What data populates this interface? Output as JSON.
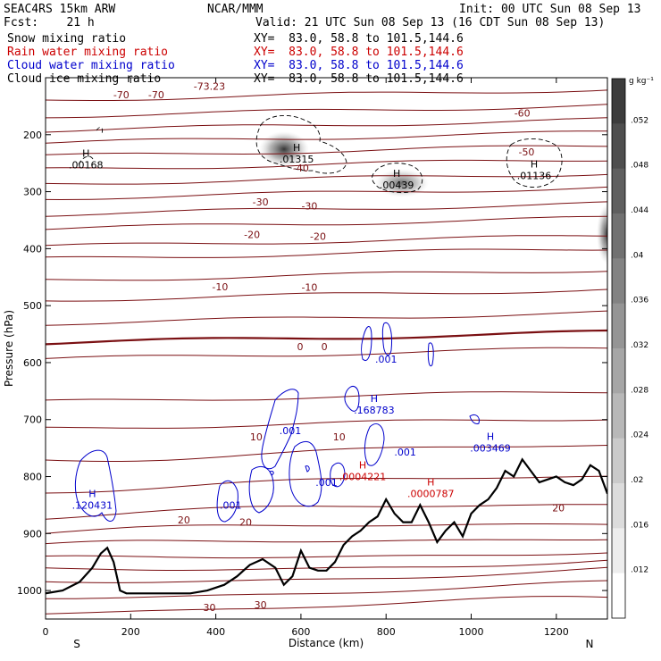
{
  "header": {
    "model": "SEAC4RS 15km ARW",
    "center": "NCAR/MMM",
    "init": "Init: 00 UTC Sun 08 Sep 13",
    "fcst": "Fcst:    21 h",
    "valid": "Valid: 21 UTC Sun 08 Sep 13 (16 CDT Sun 08 Sep 13)",
    "fields": [
      {
        "name": "Snow mixing ratio",
        "xy": "XY=  83.0, 58.8 to 101.5,144.6",
        "color": "#000000"
      },
      {
        "name": "Rain water mixing ratio",
        "xy": "XY=  83.0, 58.8 to 101.5,144.6",
        "color": "#cc0000"
      },
      {
        "name": "Cloud water mixing ratio",
        "xy": "XY=  83.0, 58.8 to 101.5,144.6",
        "color": "#0000cc"
      },
      {
        "name": "Cloud ice mixing ratio",
        "xy": "XY=  83.0, 58.8 to 101.5,144.6",
        "color": "#000000"
      }
    ]
  },
  "chart_data": {
    "type": "cross-section",
    "xlabel": "Distance (km)",
    "ylabel": "Pressure (hPa)",
    "x_ticks": [
      0,
      200,
      400,
      600,
      800,
      1000,
      1200
    ],
    "y_ticks": [
      200,
      300,
      400,
      500,
      600,
      700,
      800,
      900,
      1000
    ],
    "xlim": [
      0,
      1320
    ],
    "ylim": [
      1050,
      100
    ],
    "left_end_label": "S",
    "right_end_label": "N",
    "colorbar": {
      "unit": "g kg⁻¹",
      "ticks": [
        ".052",
        ".048",
        ".044",
        ".04",
        ".036",
        ".032",
        ".028",
        ".024",
        ".02",
        ".016",
        ".012"
      ]
    },
    "temperature_contour_labels": [
      {
        "text": "-73.23",
        "x": 385,
        "p": 115
      },
      {
        "text": "-70",
        "x": 178,
        "p": 130
      },
      {
        "text": "-70",
        "x": 260,
        "p": 130
      },
      {
        "text": "-60",
        "x": 1120,
        "p": 162
      },
      {
        "text": "-50",
        "x": 1130,
        "p": 230
      },
      {
        "text": "-40",
        "x": 600,
        "p": 258
      },
      {
        "text": "-30",
        "x": 505,
        "p": 318
      },
      {
        "text": "-30",
        "x": 620,
        "p": 325
      },
      {
        "text": "-20",
        "x": 485,
        "p": 375
      },
      {
        "text": "-20",
        "x": 640,
        "p": 378
      },
      {
        "text": "-10",
        "x": 410,
        "p": 467
      },
      {
        "text": "-10",
        "x": 620,
        "p": 468
      },
      {
        "text": "0",
        "x": 598,
        "p": 572
      },
      {
        "text": "0",
        "x": 655,
        "p": 572
      },
      {
        "text": "10",
        "x": 495,
        "p": 730
      },
      {
        "text": "10",
        "x": 690,
        "p": 730
      },
      {
        "text": "20",
        "x": 325,
        "p": 876
      },
      {
        "text": "20",
        "x": 470,
        "p": 880
      },
      {
        "text": "20",
        "x": 1205,
        "p": 855
      },
      {
        "text": "30",
        "x": 385,
        "p": 1030
      },
      {
        "text": "30",
        "x": 505,
        "p": 1025
      }
    ],
    "maxima": [
      {
        "field": "cloud ice",
        "value": ".00168",
        "x": 95,
        "p": 245
      },
      {
        "field": "snow",
        "value": ".01315",
        "x": 590,
        "p": 235
      },
      {
        "field": "snow",
        "value": ".00439",
        "x": 825,
        "p": 280
      },
      {
        "field": "cloud ice",
        "value": ".01136",
        "x": 1148,
        "p": 264
      },
      {
        "field": "cloud water",
        "value": ".168783",
        "x": 772,
        "p": 675
      },
      {
        "field": "cloud water",
        "value": ".003469",
        "x": 1045,
        "p": 742
      },
      {
        "field": "cloud water",
        "value": ".120431",
        "x": 110,
        "p": 842
      },
      {
        "field": "rain water",
        "value": ".0004221",
        "x": 745,
        "p": 792
      },
      {
        "field": "rain water",
        "value": ".0000787",
        "x": 905,
        "p": 822
      }
    ],
    "cloud_water_labels": [
      {
        "text": ".001",
        "x": 800,
        "p": 594
      },
      {
        "text": ".001",
        "x": 575,
        "p": 719
      },
      {
        "text": ".001",
        "x": 845,
        "p": 757
      },
      {
        "text": ".001",
        "x": 660,
        "p": 810
      },
      {
        "text": ".001",
        "x": 435,
        "p": 850
      }
    ],
    "terrain": {
      "x": [
        0,
        40,
        80,
        110,
        130,
        145,
        160,
        175,
        190,
        205,
        220,
        240,
        260,
        300,
        340,
        380,
        420,
        450,
        480,
        510,
        540,
        560,
        580,
        600,
        620,
        640,
        660,
        680,
        700,
        720,
        740,
        760,
        780,
        800,
        820,
        840,
        860,
        880,
        900,
        920,
        940,
        960,
        980,
        1000,
        1020,
        1040,
        1060,
        1080,
        1100,
        1120,
        1140,
        1160,
        1180,
        1200,
        1220,
        1240,
        1260,
        1280,
        1300,
        1320
      ],
      "p": [
        1005,
        1000,
        985,
        960,
        935,
        925,
        950,
        1000,
        1005,
        1005,
        1005,
        1005,
        1005,
        1005,
        1005,
        1000,
        990,
        975,
        955,
        945,
        960,
        990,
        975,
        930,
        960,
        965,
        965,
        950,
        920,
        905,
        895,
        880,
        870,
        840,
        865,
        880,
        880,
        850,
        880,
        915,
        895,
        880,
        905,
        865,
        850,
        840,
        820,
        790,
        800,
        770,
        790,
        810,
        805,
        800,
        810,
        815,
        805,
        780,
        790,
        830
      ]
    }
  }
}
